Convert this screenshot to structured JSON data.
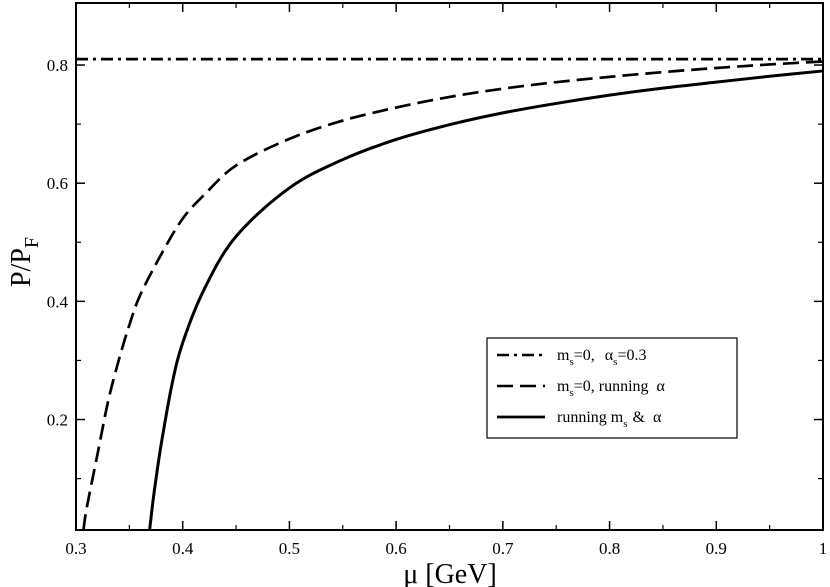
{
  "chart_data": {
    "type": "line",
    "xlabel": "μ [GeV]",
    "ylabel": {
      "main": "P/P",
      "sub": "F"
    },
    "xlim": [
      0.3,
      1.0
    ],
    "ylim": [
      0.013,
      0.905
    ],
    "xticks": [
      "0.3",
      "0.4",
      "0.5",
      "0.6",
      "0.7",
      "0.8",
      "0.9",
      "1"
    ],
    "yticks": [
      "0.2",
      "0.4",
      "0.6",
      "0.8"
    ],
    "grid": false,
    "legend_position": "bottom-right",
    "series": [
      {
        "key": "const",
        "name": "m_s=0, α_s=0.3",
        "legend": {
          "m": "m",
          "s1": "s",
          "eq": "=0,",
          "alpha": "α",
          "s2": "s",
          "val": "=0.3"
        },
        "dash": "dash-dot",
        "x": [
          0.3,
          1.0
        ],
        "y": [
          0.81,
          0.81
        ]
      },
      {
        "key": "running_alpha",
        "name": "m_s=0, running α",
        "legend": {
          "m": "m",
          "s1": "s",
          "rest": "=0, running",
          "alpha": "α"
        },
        "dash": "dashed",
        "x": [
          0.307,
          0.31,
          0.32,
          0.33,
          0.34,
          0.35,
          0.36,
          0.38,
          0.4,
          0.42,
          0.45,
          0.5,
          0.55,
          0.6,
          0.65,
          0.7,
          0.75,
          0.8,
          0.85,
          0.9,
          0.95,
          1.0
        ],
        "y": [
          0.013,
          0.05,
          0.14,
          0.23,
          0.3,
          0.36,
          0.41,
          0.48,
          0.54,
          0.58,
          0.63,
          0.675,
          0.706,
          0.728,
          0.746,
          0.76,
          0.771,
          0.78,
          0.788,
          0.795,
          0.801,
          0.806
        ]
      },
      {
        "key": "running_ms_alpha",
        "name": "running m_s & α",
        "legend": {
          "pre": "running m",
          "s1": "s",
          "amp": "&",
          "alpha": "α"
        },
        "dash": "solid",
        "x": [
          0.369,
          0.372,
          0.375,
          0.38,
          0.39,
          0.4,
          0.42,
          0.45,
          0.5,
          0.55,
          0.6,
          0.65,
          0.7,
          0.75,
          0.8,
          0.85,
          0.9,
          0.95,
          1.0
        ],
        "y": [
          0.013,
          0.06,
          0.1,
          0.16,
          0.26,
          0.33,
          0.42,
          0.51,
          0.592,
          0.64,
          0.674,
          0.699,
          0.719,
          0.735,
          0.749,
          0.761,
          0.771,
          0.781,
          0.79
        ]
      }
    ]
  },
  "colors": {
    "line": "#000000",
    "background": "#ffffff"
  }
}
